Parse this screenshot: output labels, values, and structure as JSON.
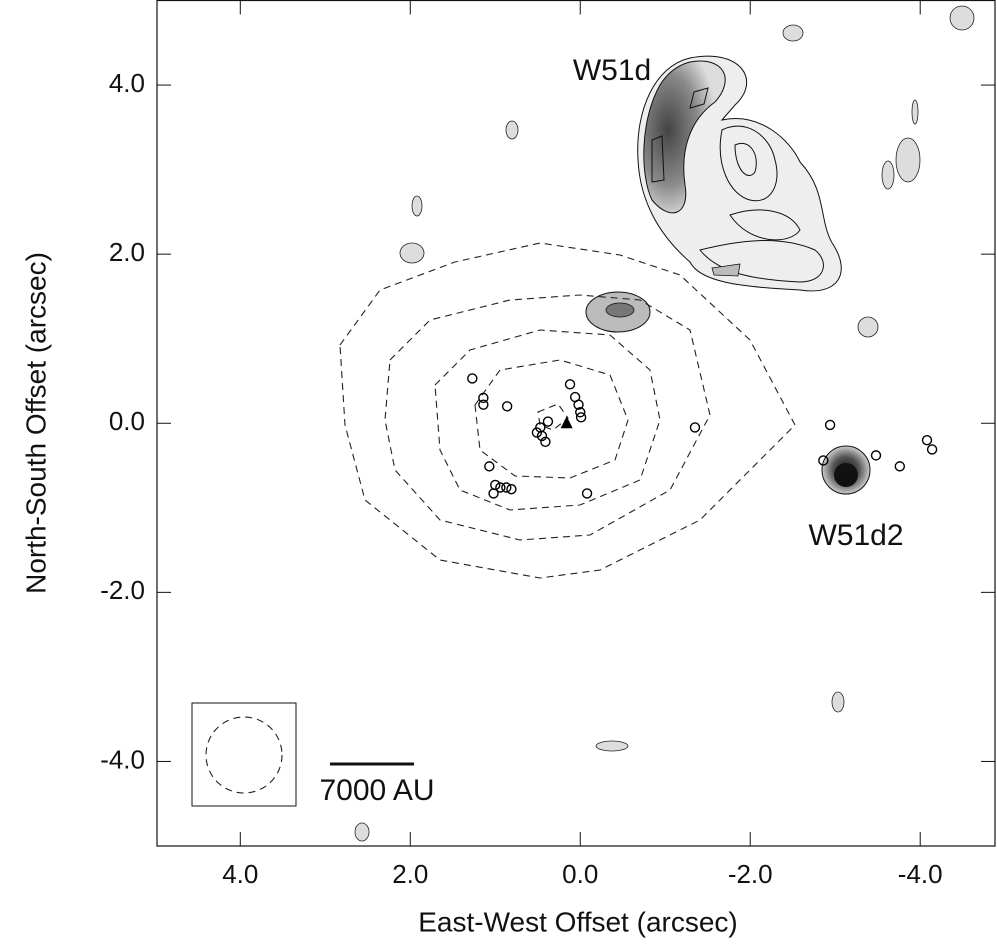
{
  "chart_data": {
    "type": "scatter",
    "x_label": "East-West Offset (arcsec)",
    "y_label": "North-South Offset (arcsec)",
    "xlim": [
      4.98,
      -4.88
    ],
    "ylim": [
      -5.0,
      5.0
    ],
    "xticks": [
      {
        "value": 4,
        "label": "4.0"
      },
      {
        "value": 2,
        "label": "2.0"
      },
      {
        "value": 0,
        "label": "0.0"
      },
      {
        "value": -2,
        "label": "-2.0"
      },
      {
        "value": -4,
        "label": "-4.0"
      }
    ],
    "yticks": [
      {
        "value": 4,
        "label": "4.0"
      },
      {
        "value": 2,
        "label": "2.0"
      },
      {
        "value": 0,
        "label": "0.0"
      },
      {
        "value": -2,
        "label": "-2.0"
      },
      {
        "value": -4,
        "label": "-4.0"
      }
    ],
    "annotations": [
      "W51d",
      "W51d2",
      "7000 AU"
    ],
    "series": [
      {
        "marker": "circle",
        "color": "#000000",
        "x": [
          1.27,
          1.14,
          1.14,
          0.86,
          0.12,
          0.06,
          0.02,
          0.0,
          -0.01,
          0.38,
          0.47,
          0.51,
          0.45,
          0.41,
          1.07,
          1.0,
          0.94,
          0.87,
          0.81,
          1.02,
          -0.08,
          -1.35,
          -2.94,
          -2.86,
          -3.48,
          -3.76,
          -4.08,
          -4.14
        ],
        "y": [
          0.53,
          0.3,
          0.22,
          0.2,
          0.46,
          0.31,
          0.22,
          0.13,
          0.07,
          0.02,
          -0.05,
          -0.11,
          -0.15,
          -0.22,
          -0.51,
          -0.73,
          -0.76,
          -0.76,
          -0.78,
          -0.83,
          -0.83,
          -0.05,
          -0.02,
          -0.44,
          -0.38,
          -0.51,
          -0.2,
          -0.31
        ]
      },
      {
        "marker": "triangle",
        "color": "#000000",
        "x": [
          0.16
        ],
        "y": [
          0.0
        ]
      }
    ]
  }
}
